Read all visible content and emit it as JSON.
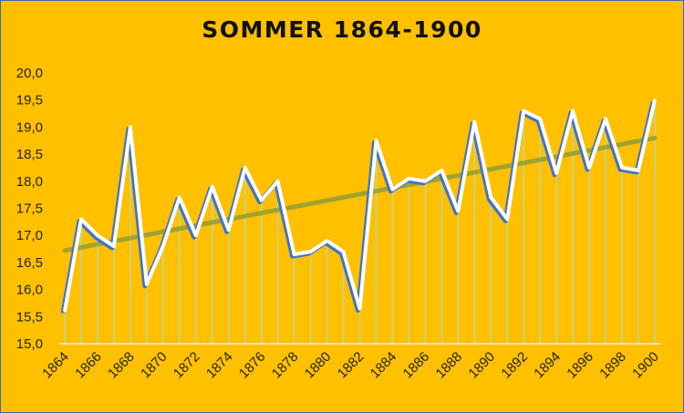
{
  "chart_data": {
    "type": "line",
    "title": "SOMMER 1864-1900",
    "xlabel": "",
    "ylabel": "",
    "x": [
      1864,
      1865,
      1866,
      1867,
      1868,
      1869,
      1870,
      1871,
      1872,
      1873,
      1874,
      1875,
      1876,
      1877,
      1878,
      1879,
      1880,
      1881,
      1882,
      1883,
      1884,
      1885,
      1886,
      1887,
      1888,
      1889,
      1890,
      1891,
      1892,
      1893,
      1894,
      1895,
      1896,
      1897,
      1898,
      1899,
      1900
    ],
    "series": [
      {
        "values": [
          15.6,
          17.3,
          17.0,
          16.8,
          19.0,
          16.1,
          16.8,
          17.7,
          17.0,
          17.9,
          17.1,
          18.25,
          17.65,
          18.0,
          16.65,
          16.7,
          16.9,
          16.7,
          15.65,
          18.75,
          17.85,
          18.05,
          18.0,
          18.2,
          17.45,
          19.1,
          17.7,
          17.3,
          19.3,
          19.15,
          18.15,
          19.3,
          18.25,
          19.15,
          18.25,
          18.2,
          19.5
        ],
        "color": "#4472C4"
      }
    ],
    "trendline": {
      "start": 16.72,
      "end": 18.8,
      "color": "#8A9A3A"
    },
    "ylim": [
      15.0,
      20.0
    ],
    "yticks": [
      "15,0",
      "15,5",
      "16,0",
      "16,5",
      "17,0",
      "17,5",
      "18,0",
      "18,5",
      "19,0",
      "19,5",
      "20,0"
    ],
    "xticks": [
      "1864",
      "1866",
      "1868",
      "1870",
      "1872",
      "1874",
      "1876",
      "1878",
      "1880",
      "1882",
      "1884",
      "1886",
      "1888",
      "1890",
      "1892",
      "1894",
      "1896",
      "1898",
      "1900"
    ],
    "grid": false,
    "legend": "none",
    "background": "#FFC000",
    "droplines_color": "#B7D7A8"
  }
}
